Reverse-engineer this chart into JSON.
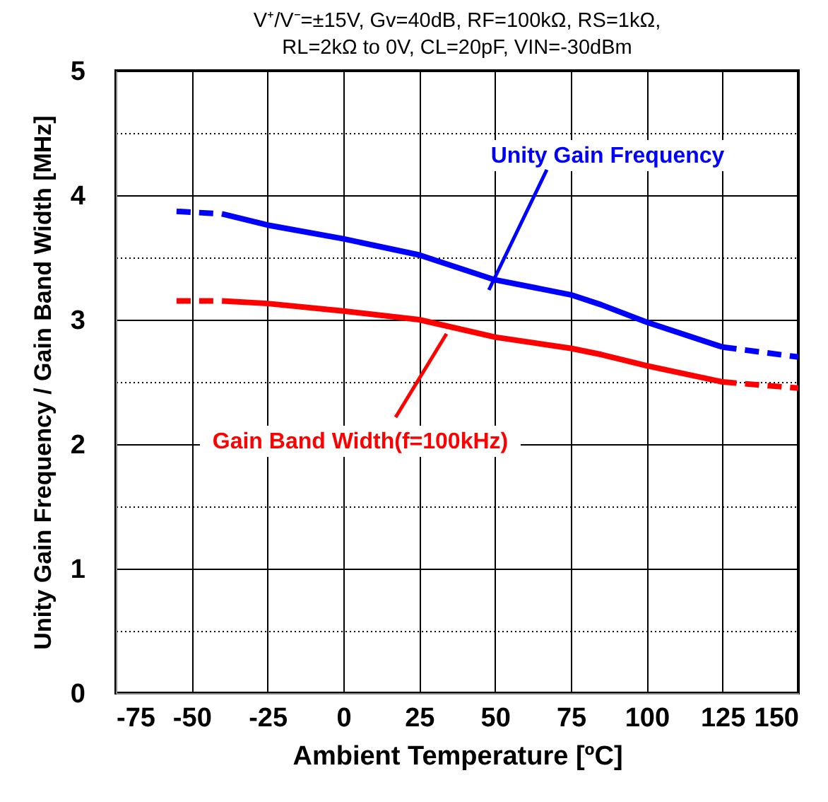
{
  "chart_data": {
    "type": "line",
    "subtitle": [
      "V⁺/V⁻=±15V,  Gv=40dB, RF=100kΩ, RS=1kΩ,",
      "RL=2kΩ to 0V, CL=20pF, VIN=-30dBm"
    ],
    "xlabel": "Ambient Temperature [ºC]",
    "ylabel": "Unity Gain Frequency / Gain Band Width [MHz]",
    "xlim": [
      -75,
      150
    ],
    "xticks": [
      -75,
      -50,
      -25,
      0,
      25,
      50,
      75,
      100,
      125,
      150
    ],
    "ylim": [
      0,
      5
    ],
    "yticks": [
      0,
      {
        "value": 0.5,
        "label": null
      },
      1,
      {
        "value": 1.5,
        "label": null
      },
      2,
      {
        "value": 2.5,
        "label": null
      },
      3,
      {
        "value": 3.5,
        "label": null
      },
      4,
      {
        "value": 4.5,
        "label": null
      },
      5
    ],
    "grid": true,
    "marker": "none",
    "series": [
      {
        "name": "Unity Gain Frequency",
        "color": "#0000ff",
        "line_style": "solid",
        "x": [
          -40,
          -25,
          0,
          25,
          50,
          75,
          85,
          100,
          125
        ],
        "values": [
          3.85,
          3.76,
          3.65,
          3.52,
          3.32,
          3.2,
          3.12,
          2.98,
          2.78
        ]
      },
      {
        "color": "#0000ff",
        "line_style": "dashed",
        "x": [
          -55,
          -40
        ],
        "values": [
          3.87,
          3.85
        ]
      },
      {
        "color": "#0000ff",
        "line_style": "dashed",
        "x": [
          125,
          150
        ],
        "values": [
          2.78,
          2.7
        ]
      },
      {
        "name": "Gain Band Width(f=100kHz)",
        "color": "#ff0000",
        "line_style": "solid",
        "x": [
          -40,
          -25,
          0,
          25,
          50,
          75,
          85,
          100,
          125
        ],
        "values": [
          3.15,
          3.13,
          3.07,
          3.0,
          2.86,
          2.77,
          2.72,
          2.63,
          2.5
        ]
      },
      {
        "color": "#ff0000",
        "line_style": "dashed",
        "x": [
          -55,
          -40
        ],
        "values": [
          3.15,
          3.15
        ]
      },
      {
        "color": "#ff0000",
        "line_style": "dashed",
        "x": [
          125,
          150
        ],
        "values": [
          2.5,
          2.45
        ]
      }
    ]
  }
}
